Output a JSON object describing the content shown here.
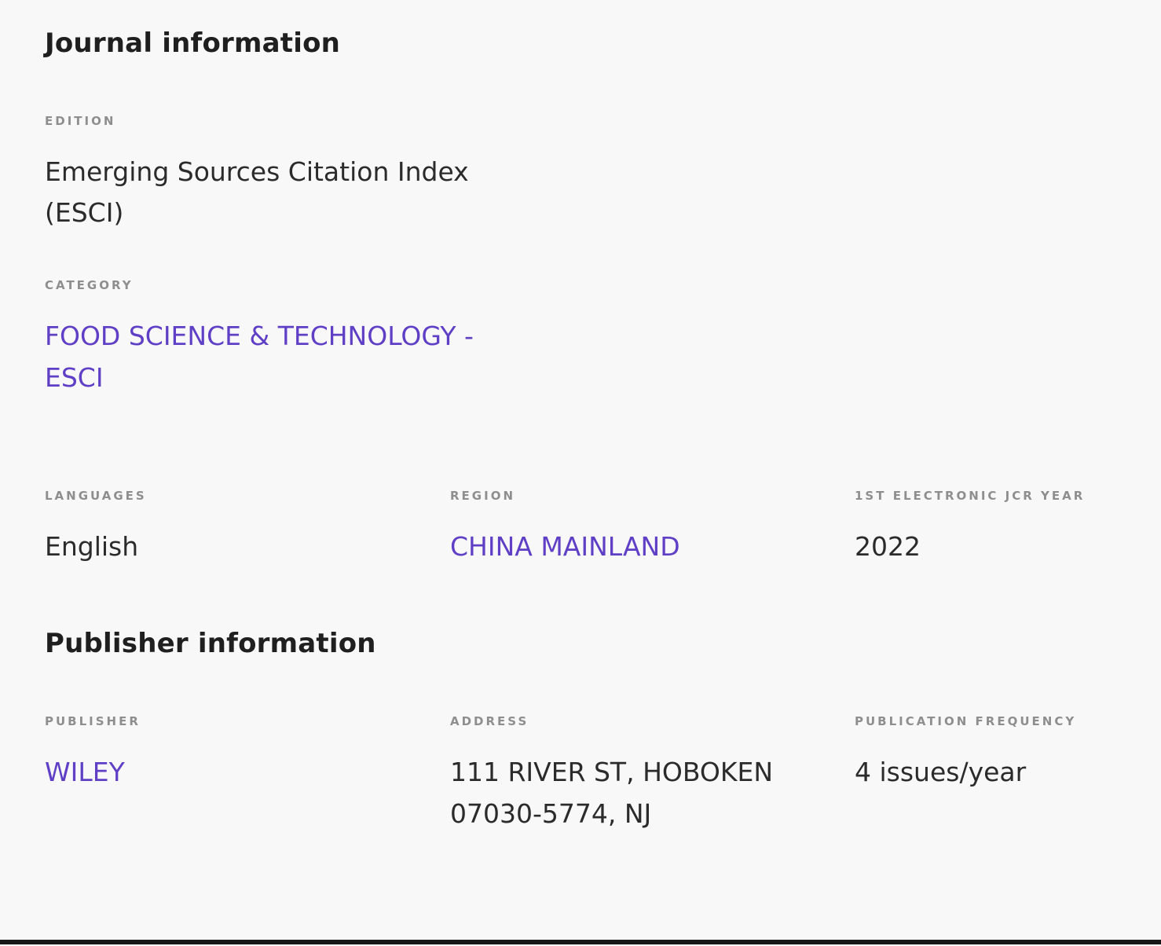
{
  "theme": {
    "accent": "#5F3FC5",
    "text": "#2B2B2B",
    "heading": "#1F1F1F",
    "label": "#8E8E8E",
    "background": "#F8F8F8",
    "bottom_bar": "#171717"
  },
  "journal_information": {
    "title": "Journal information",
    "fields": {
      "edition": {
        "label": "EDITION",
        "value": "Emerging Sources Citation Index (ESCI)"
      },
      "category": {
        "label": "CATEGORY",
        "value": "FOOD SCIENCE & TECHNOLOGY - ESCI"
      },
      "languages": {
        "label": "LANGUAGES",
        "value": "English"
      },
      "region": {
        "label": "REGION",
        "value": "CHINA MAINLAND"
      },
      "first_electronic_jcr_year": {
        "label": "1ST ELECTRONIC JCR YEAR",
        "value": "2022"
      }
    }
  },
  "publisher_information": {
    "title": "Publisher information",
    "fields": {
      "publisher": {
        "label": "PUBLISHER",
        "value": "WILEY"
      },
      "address": {
        "label": "ADDRESS",
        "value": "111 RIVER ST, HOBOKEN 07030-5774, NJ"
      },
      "publication_frequency": {
        "label": "PUBLICATION FREQUENCY",
        "value": "4 issues/year"
      }
    }
  }
}
